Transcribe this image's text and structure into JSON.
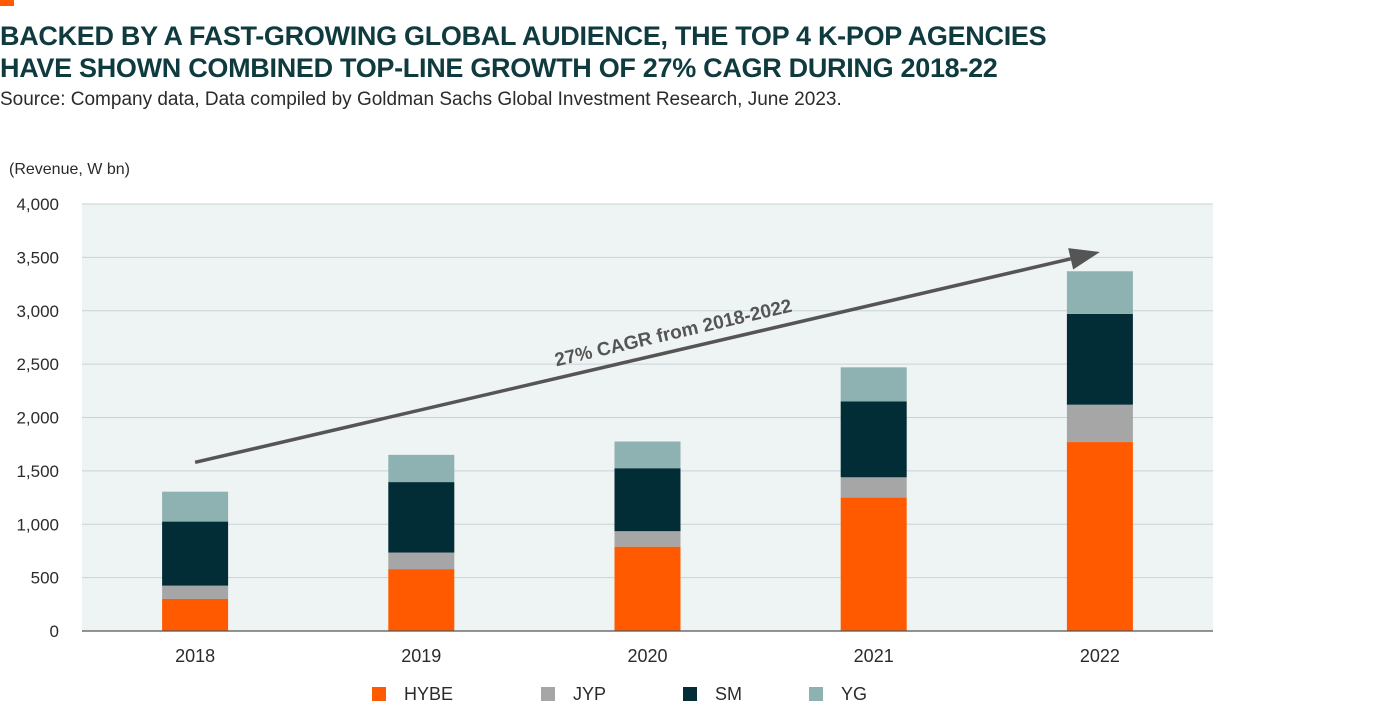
{
  "title_lines": [
    "BACKED BY A FAST-GROWING GLOBAL AUDIENCE, THE TOP 4 K-POP AGENCIES",
    "HAVE SHOWN COMBINED TOP-LINE GROWTH OF 27% CAGR DURING 2018-22"
  ],
  "source": "Source: Company data, Data compiled by Goldman Sachs Global Investment Research, June 2023.",
  "colors": {
    "accent": "#ff5a00",
    "HYBE": "#ff5a00",
    "JYP": "#a6a6a6",
    "SM": "#022d36",
    "YG": "#8eb1b1",
    "plot_bg": "#eef3f4",
    "grid": "#c9d3d6",
    "arrow": "#555555"
  },
  "chart_data": {
    "type": "bar",
    "stacked": true,
    "ylabel": "(Revenue, W bn)",
    "xlabel": "",
    "ylim": [
      0,
      4000
    ],
    "yticks": [
      0,
      500,
      1000,
      1500,
      2000,
      2500,
      3000,
      3500,
      4000
    ],
    "ytick_labels": [
      "0",
      "500",
      "1,000",
      "1,500",
      "2,000",
      "2,500",
      "3,000",
      "3,500",
      "4,000"
    ],
    "categories": [
      "2018",
      "2019",
      "2020",
      "2021",
      "2022"
    ],
    "series": [
      {
        "name": "HYBE",
        "values": [
          300,
          580,
          790,
          1250,
          1770
        ]
      },
      {
        "name": "JYP",
        "values": [
          125,
          155,
          145,
          190,
          350
        ]
      },
      {
        "name": "SM",
        "values": [
          600,
          660,
          590,
          710,
          850
        ]
      },
      {
        "name": "YG",
        "values": [
          280,
          255,
          250,
          320,
          400
        ]
      }
    ],
    "grid": true,
    "legend": "bottom",
    "annotation": {
      "text": "27% CAGR from 2018-2022",
      "from": {
        "x": "2018",
        "y": 1580
      },
      "to": {
        "x": "2022",
        "y": 3550
      }
    }
  }
}
